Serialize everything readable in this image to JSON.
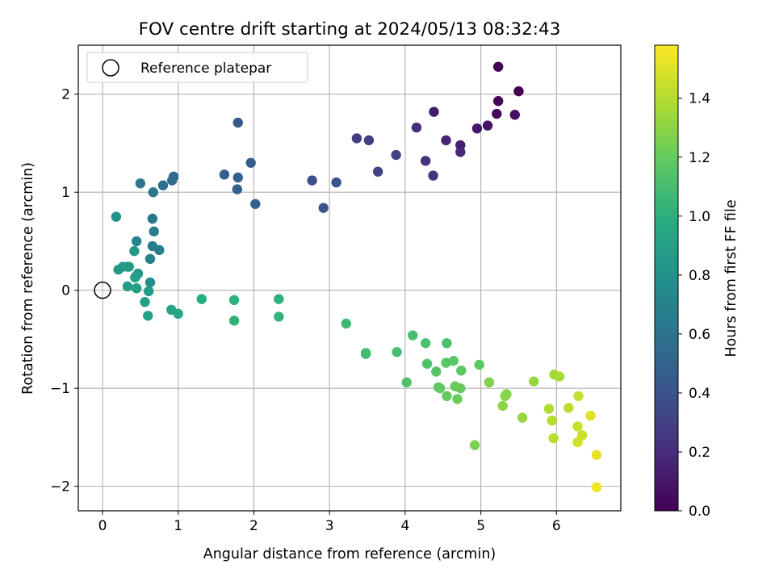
{
  "chart_data": {
    "type": "scatter",
    "title": "FOV centre drift starting at 2024/05/13 08:32:43",
    "xlabel": "Angular distance from reference (arcmin)",
    "ylabel": "Rotation from reference (arcmin)",
    "xlim": [
      -0.32,
      6.85
    ],
    "ylim": [
      -2.25,
      2.5
    ],
    "xticks": [
      0,
      1,
      2,
      3,
      4,
      5,
      6
    ],
    "yticks": [
      -2,
      -1,
      0,
      1,
      2
    ],
    "grid": true,
    "legend": {
      "position": "upper-left",
      "entries": [
        "Reference platepar"
      ]
    },
    "reference_point": {
      "x": 0,
      "y": 0
    },
    "colorbar": {
      "label": "Hours from first FF file",
      "colormap": "viridis",
      "range": [
        0,
        1.58
      ],
      "ticks": [
        0.0,
        0.2,
        0.4,
        0.6,
        0.8,
        1.0,
        1.2,
        1.4
      ],
      "tick_labels": [
        "0.0",
        "0.2",
        "0.4",
        "0.6",
        "0.8",
        "1.0",
        "1.2",
        "1.4"
      ]
    },
    "series": [
      {
        "x": [
          5.23,
          5.5,
          5.23,
          5.21,
          5.45,
          5.09,
          4.95,
          4.38,
          4.73,
          4.54,
          4.73,
          4.15,
          4.27,
          4.37,
          3.36,
          3.52,
          3.64,
          3.88,
          2.77,
          3.09,
          2.92,
          1.79,
          1.96,
          1.61,
          1.79,
          1.78,
          2.02,
          0.94,
          0.92,
          0.8,
          0.5,
          0.67,
          0.66,
          0.68,
          0.66,
          0.75,
          0.63,
          0.45,
          0.18,
          0.42,
          0.47,
          0.21,
          0.27,
          0.33,
          0.35,
          0.43,
          0.44,
          0.63,
          0.33,
          0.61,
          0.45,
          0.56,
          0.6,
          0.91,
          1.0,
          1.31,
          1.74,
          2.33,
          1.74,
          2.33,
          3.22,
          3.48,
          3.48,
          3.89,
          4.1,
          4.27,
          4.55,
          4.29,
          4.02,
          4.41,
          4.54,
          4.64,
          4.74,
          4.98,
          4.44,
          4.46,
          4.55,
          4.73,
          4.66,
          4.69,
          4.92,
          5.11,
          5.34,
          5.32,
          5.29,
          5.7,
          5.55,
          5.97,
          6.04,
          5.9,
          5.94,
          5.96,
          6.16,
          6.29,
          6.28,
          6.34,
          6.28,
          6.45,
          6.53,
          6.53
        ],
        "y": [
          2.28,
          2.03,
          1.93,
          1.8,
          1.79,
          1.68,
          1.65,
          1.82,
          1.48,
          1.53,
          1.41,
          1.66,
          1.32,
          1.17,
          1.55,
          1.53,
          1.21,
          1.38,
          1.12,
          1.1,
          0.84,
          1.71,
          1.3,
          1.18,
          1.15,
          1.03,
          0.88,
          1.16,
          1.12,
          1.07,
          1.09,
          1.0,
          0.73,
          0.6,
          0.45,
          0.41,
          0.32,
          0.5,
          0.75,
          0.4,
          0.17,
          0.21,
          0.24,
          0.24,
          0.24,
          0.13,
          0.14,
          0.08,
          0.04,
          -0.01,
          0.02,
          -0.12,
          -0.26,
          -0.2,
          -0.24,
          -0.09,
          -0.1,
          -0.09,
          -0.31,
          -0.27,
          -0.34,
          -0.64,
          -0.65,
          -0.63,
          -0.46,
          -0.54,
          -0.54,
          -0.75,
          -0.94,
          -0.83,
          -0.74,
          -0.72,
          -0.82,
          -0.76,
          -0.99,
          -1.0,
          -1.08,
          -1.0,
          -0.98,
          -1.11,
          -1.58,
          -0.94,
          -1.06,
          -1.08,
          -1.18,
          -0.93,
          -1.3,
          -0.86,
          -0.88,
          -1.21,
          -1.33,
          -1.51,
          -1.2,
          -1.08,
          -1.39,
          -1.48,
          -1.55,
          -1.28,
          -1.68,
          -2.01
        ],
        "t": [
          0.0,
          0.0,
          0.02,
          0.04,
          0.06,
          0.08,
          0.1,
          0.12,
          0.14,
          0.16,
          0.18,
          0.2,
          0.22,
          0.24,
          0.28,
          0.29,
          0.31,
          0.32,
          0.38,
          0.39,
          0.4,
          0.44,
          0.46,
          0.47,
          0.48,
          0.49,
          0.5,
          0.54,
          0.55,
          0.56,
          0.62,
          0.63,
          0.64,
          0.65,
          0.66,
          0.67,
          0.69,
          0.71,
          0.8,
          0.84,
          0.84,
          0.84,
          0.85,
          0.86,
          0.86,
          0.88,
          0.88,
          0.78,
          0.87,
          0.86,
          0.88,
          0.89,
          0.9,
          0.92,
          0.93,
          0.98,
          1.0,
          1.01,
          1.02,
          1.03,
          1.06,
          1.07,
          1.08,
          1.1,
          1.11,
          1.12,
          1.12,
          1.13,
          1.14,
          1.15,
          1.16,
          1.17,
          1.17,
          1.18,
          1.18,
          1.19,
          1.2,
          1.2,
          1.21,
          1.22,
          1.26,
          1.27,
          1.28,
          1.29,
          1.3,
          1.32,
          1.33,
          1.36,
          1.37,
          1.38,
          1.4,
          1.41,
          1.42,
          1.44,
          1.45,
          1.46,
          1.47,
          1.5,
          1.52,
          1.55
        ]
      }
    ]
  }
}
